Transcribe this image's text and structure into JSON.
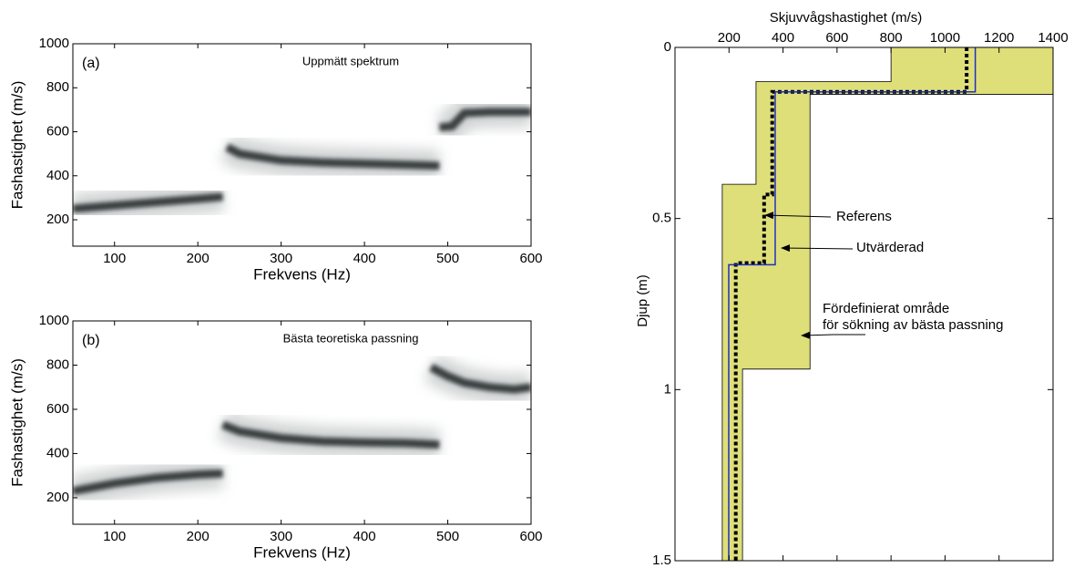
{
  "chart_data": [
    {
      "type": "spectrum",
      "panel_label": "(a)",
      "title": "Uppmätt spektrum",
      "xlabel": "Frekvens (Hz)",
      "ylabel": "Fashastighet (m/s)",
      "xlim": [
        50,
        600
      ],
      "xticks": [
        100,
        200,
        300,
        400,
        500,
        600
      ],
      "ylim": [
        80,
        1000
      ],
      "yticks": [
        200,
        400,
        600,
        800,
        1000
      ],
      "series": [
        {
          "color": "#3a3f3f",
          "x": [
            50,
            100,
            150,
            200,
            230
          ],
          "values": [
            250,
            265,
            280,
            295,
            305
          ]
        },
        {
          "color": "#3a3f3f",
          "x": [
            235,
            250,
            300,
            350,
            400,
            450,
            490
          ],
          "values": [
            530,
            500,
            470,
            460,
            455,
            450,
            445
          ]
        },
        {
          "color": "#3a3f3f",
          "x": [
            490,
            505,
            520,
            550,
            600
          ],
          "values": [
            620,
            625,
            685,
            690,
            690
          ]
        }
      ]
    },
    {
      "type": "spectrum",
      "panel_label": "(b)",
      "title": "Bästa teoretiska passning",
      "xlabel": "Frekvens (Hz)",
      "ylabel": "Fashastighet (m/s)",
      "xlim": [
        50,
        600
      ],
      "xticks": [
        100,
        200,
        300,
        400,
        500,
        600
      ],
      "ylim": [
        80,
        1000
      ],
      "yticks": [
        200,
        400,
        600,
        800,
        1000
      ],
      "series": [
        {
          "color": "#3a3f3f",
          "x": [
            50,
            100,
            150,
            200,
            230
          ],
          "values": [
            230,
            265,
            290,
            305,
            310
          ]
        },
        {
          "color": "#3a3f3f",
          "x": [
            230,
            250,
            300,
            350,
            400,
            450,
            490
          ],
          "values": [
            530,
            500,
            470,
            455,
            450,
            447,
            440
          ]
        },
        {
          "color": "#3a3f3f",
          "x": [
            480,
            500,
            520,
            550,
            580,
            600
          ],
          "values": [
            790,
            750,
            720,
            700,
            690,
            700
          ]
        }
      ]
    },
    {
      "type": "profile",
      "xlabel": "Skjuvvågshastighet (m/s)",
      "ylabel": "Djup (m)",
      "xlim": [
        0,
        1400
      ],
      "xticks": [
        200,
        400,
        600,
        800,
        1000,
        1200,
        1400
      ],
      "ylim": [
        0,
        1.5
      ],
      "yticks": [
        0,
        0.5,
        1,
        1.5
      ],
      "region": {
        "label_lines": [
          "Fördefinierat område",
          "för sökning av bästa passning"
        ],
        "color": "#dfdf7a",
        "x": [
          800,
          1400,
          1400,
          500,
          500,
          250,
          250,
          175,
          175,
          300,
          300,
          800
        ],
        "values": [
          0,
          0,
          0.137,
          0.137,
          0.94,
          0.94,
          1.5,
          1.5,
          0.4,
          0.4,
          0.1,
          0.1
        ]
      },
      "series": [
        {
          "name": "Referens",
          "color": "#000000",
          "style": "dotted",
          "x": [
            1080,
            1080,
            360,
            360,
            330,
            330,
            225,
            225
          ],
          "values": [
            0,
            0.13,
            0.13,
            0.43,
            0.43,
            0.63,
            0.63,
            1.5
          ]
        },
        {
          "name": "Utvärderad",
          "color": "#1f2fbf",
          "style": "solid",
          "x": [
            1112,
            1112,
            371,
            371,
            199,
            199
          ],
          "values": [
            0,
            0.13,
            0.13,
            0.635,
            0.635,
            1.5
          ]
        }
      ]
    }
  ]
}
